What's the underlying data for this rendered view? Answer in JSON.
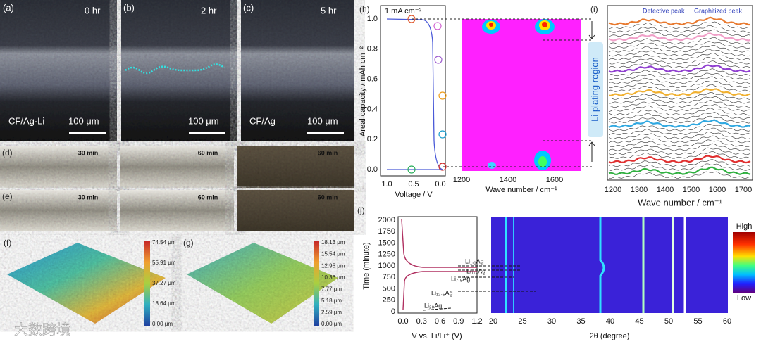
{
  "panels": {
    "a": {
      "label": "(a)",
      "time": "0 hr",
      "sample": "CF/Ag-Li",
      "scale": "100 μm"
    },
    "b": {
      "label": "(b)",
      "time": "2 hr",
      "scale": "100 μm"
    },
    "c": {
      "label": "(c)",
      "time": "5 hr",
      "sample": "CF/Ag",
      "scale": "100 μm"
    },
    "d": {
      "label": "(d)",
      "times": [
        "30 min",
        "60 min",
        "60 min"
      ]
    },
    "e": {
      "label": "(e)",
      "times": [
        "30 min",
        "60 min",
        "60 min"
      ]
    },
    "f": {
      "label": "(f)",
      "colorbar": [
        "74.54 μm",
        "55.91 μm",
        "37.27 μm",
        "18.64 μm",
        "0.00 μm"
      ]
    },
    "g": {
      "label": "(g)",
      "colorbar": [
        "18.13 μm",
        "15.54 μm",
        "12.95 μm",
        "10.36 μm",
        "7.77 μm",
        "5.18 μm",
        "2.59 μm",
        "0.00 μm"
      ]
    },
    "h": {
      "label": "(h)",
      "current": "1 mA cm⁻²",
      "ylabel": "Areal capacity / mAh cm⁻²",
      "yticks": [
        "0.0",
        "0.2",
        "0.4",
        "0.6",
        "0.8",
        "1.0"
      ],
      "xticks": [
        "1.0",
        "0.5",
        "0.0"
      ],
      "xlabel": "Voltage / V",
      "map_xticks": [
        "1200",
        "1400",
        "1600"
      ],
      "map_xlabel": "Wave number / cm⁻¹",
      "region": "Li plating region"
    },
    "i": {
      "label": "(i)",
      "peak1": "Defective peak",
      "peak2": "Graphitized peak",
      "xticks": [
        "1200",
        "1300",
        "1400",
        "1500",
        "1600",
        "1700"
      ],
      "xlabel": "Wave number / cm⁻¹"
    },
    "j": {
      "label": "(j)",
      "ylabel": "Time (minute)",
      "yticks": [
        "0",
        "250",
        "500",
        "750",
        "1000",
        "1250",
        "1500",
        "1750",
        "2000"
      ],
      "xticks": [
        "0.0",
        "0.3",
        "0.6",
        "0.9",
        "1.2"
      ],
      "xlabel": "V vs. Li/Li⁺ (V)",
      "phases": [
        "Li₁.₁Ag",
        "Li₁.₄Ag",
        "Li₇.₅Ag",
        "Li₁₂.₅Ag",
        "Li₂₀Ag"
      ],
      "map_xticks": [
        "20",
        "25",
        "30",
        "35",
        "40",
        "45",
        "50",
        "55",
        "60"
      ],
      "map_xlabel": "2θ (degree)",
      "high": "High",
      "low": "Low"
    }
  },
  "watermark": "大数跨境"
}
